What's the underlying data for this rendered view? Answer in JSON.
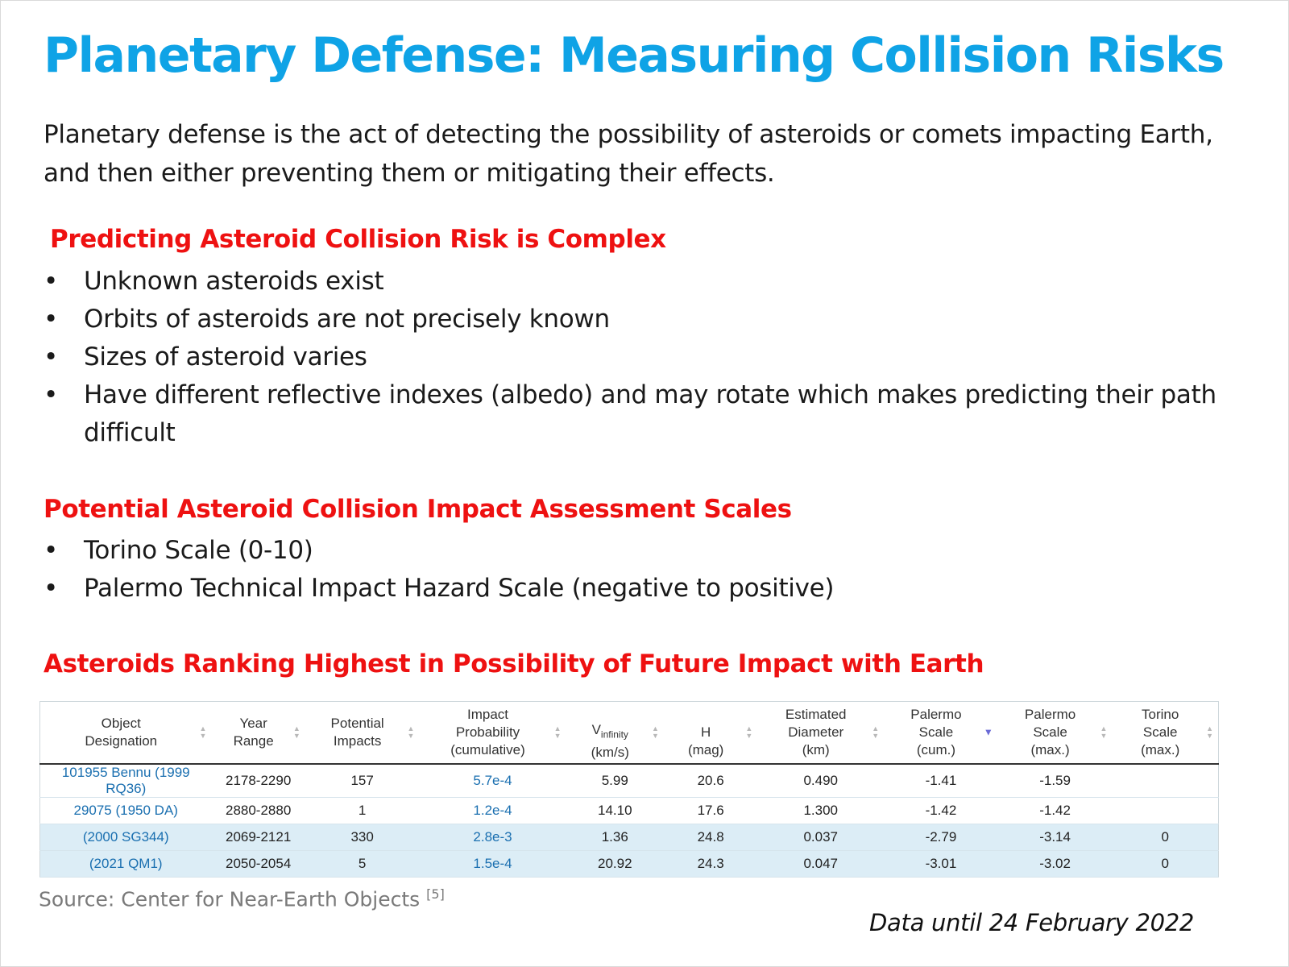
{
  "title": "Planetary Defense: Measuring Collision Risks",
  "intro": "Planetary defense is the act of detecting the possibility of asteroids or comets impacting Earth, and then either preventing them or mitigating their effects.",
  "section1": {
    "heading": "Predicting Asteroid Collision Risk is Complex",
    "bullets": [
      "Unknown asteroids exist",
      "Orbits of asteroids are not precisely known",
      "Sizes of asteroid varies",
      "Have different reflective indexes (albedo) and may rotate which makes predicting their path difficult"
    ]
  },
  "section2": {
    "heading": "Potential Asteroid Collision Impact Assessment Scales",
    "bullets": [
      "Torino Scale (0-10)",
      "Palermo Technical Impact Hazard Scale (negative to positive)"
    ]
  },
  "section3": {
    "heading": "Asteroids Ranking Highest in Possibility of Future Impact with Earth"
  },
  "table": {
    "headers": [
      {
        "line1": "Object",
        "line2": "Designation",
        "line3": ""
      },
      {
        "line1": "Year",
        "line2": "Range",
        "line3": ""
      },
      {
        "line1": "Potential",
        "line2": "Impacts",
        "line3": ""
      },
      {
        "line1": "Impact",
        "line2": "Probability",
        "line3": "(cumulative)"
      },
      {
        "line1": "",
        "line2": "V",
        "sub": "infinity",
        "line3": "(km/s)"
      },
      {
        "line1": "",
        "line2": "H",
        "line3": "(mag)"
      },
      {
        "line1": "Estimated",
        "line2": "Diameter",
        "line3": "(km)"
      },
      {
        "line1": "Palermo",
        "line2": "Scale",
        "line3": "(cum.)"
      },
      {
        "line1": "Palermo",
        "line2": "Scale",
        "line3": "(max.)"
      },
      {
        "line1": "Torino",
        "line2": "Scale",
        "line3": "(max.)"
      }
    ],
    "rows": [
      [
        "101955 Bennu (1999 RQ36)",
        "2178-2290",
        "157",
        "5.7e-4",
        "5.99",
        "20.6",
        "0.490",
        "-1.41",
        "-1.59",
        ""
      ],
      [
        "29075 (1950 DA)",
        "2880-2880",
        "1",
        "1.2e-4",
        "14.10",
        "17.6",
        "1.300",
        "-1.42",
        "-1.42",
        ""
      ],
      [
        "(2000 SG344)",
        "2069-2121",
        "330",
        "2.8e-3",
        "1.36",
        "24.8",
        "0.037",
        "-2.79",
        "-3.14",
        "0"
      ],
      [
        "(2021 QM1)",
        "2050-2054",
        "5",
        "1.5e-4",
        "20.92",
        "24.3",
        "0.047",
        "-3.01",
        "-3.02",
        "0"
      ]
    ]
  },
  "source": "Source: Center for Near-Earth Objects",
  "source_ref": "[5]",
  "data_note": "Data until 24 February 2022"
}
